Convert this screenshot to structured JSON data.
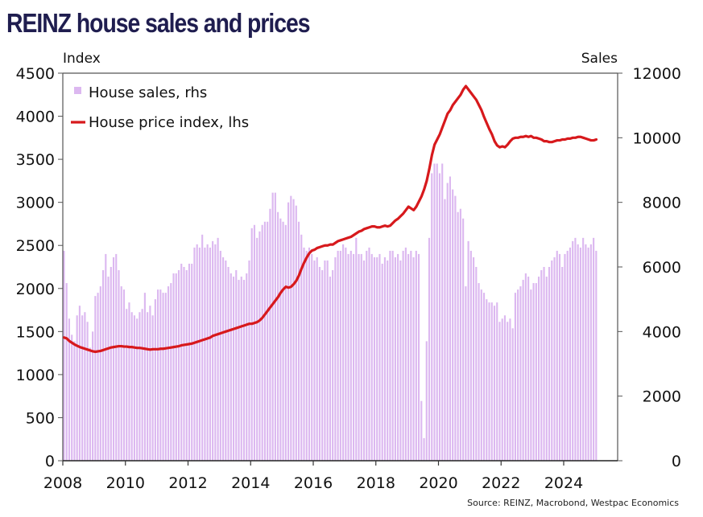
{
  "title": "REINZ house sales and prices",
  "source": "Source: REINZ, Macrobond, Westpac Economics",
  "chart_data": {
    "type": "bar+line",
    "title": "REINZ house sales and prices",
    "left_axis": {
      "label": "Index",
      "range": [
        0,
        4500
      ],
      "ticks": [
        "0",
        "500",
        "1000",
        "1500",
        "2000",
        "2500",
        "3000",
        "3500",
        "4000",
        "4500"
      ]
    },
    "right_axis": {
      "label": "Sales",
      "range": [
        0,
        12000
      ],
      "ticks": [
        "0",
        "2000",
        "4000",
        "6000",
        "8000",
        "10000",
        "12000"
      ]
    },
    "x_axis": {
      "start": "2008-01",
      "end": "2025-05",
      "ticks": [
        "2008",
        "2010",
        "2012",
        "2014",
        "2016",
        "2018",
        "2020",
        "2022",
        "2024"
      ]
    },
    "grid": false,
    "legend": {
      "position": "top-left",
      "entries": [
        {
          "label": "House sales, rhs",
          "color": "#dcb8f0",
          "type": "bar"
        },
        {
          "label": "House price index, lhs",
          "color": "#d7191c",
          "type": "line"
        }
      ]
    },
    "series": [
      {
        "name": "House sales, rhs",
        "axis": "right",
        "frequency": "monthly",
        "start": "2008-01",
        "values": [
          6500,
          5500,
          4400,
          3900,
          3700,
          4500,
          4800,
          4500,
          4600,
          4300,
          3500,
          4000,
          5100,
          5200,
          5400,
          5900,
          6400,
          5700,
          6000,
          6300,
          6400,
          5900,
          5400,
          5300,
          4700,
          4900,
          4600,
          4500,
          4400,
          4600,
          4700,
          5200,
          4600,
          4800,
          4500,
          5000,
          5300,
          5300,
          5200,
          5200,
          5400,
          5500,
          5800,
          5800,
          5900,
          6100,
          6000,
          5900,
          6100,
          6100,
          6600,
          6700,
          6600,
          7000,
          6600,
          6700,
          6600,
          6800,
          6700,
          6900,
          6500,
          6300,
          6200,
          6000,
          5800,
          5700,
          5900,
          5600,
          5700,
          5600,
          5800,
          6200,
          7200,
          7300,
          6900,
          7100,
          7300,
          7400,
          7400,
          7800,
          8300,
          8300,
          7700,
          7500,
          7400,
          7300,
          8000,
          8200,
          8100,
          7900,
          7400,
          7000,
          6600,
          6500,
          6600,
          6400,
          6200,
          6300,
          6000,
          5900,
          6200,
          6200,
          5700,
          5900,
          6300,
          6500,
          6500,
          6700,
          6600,
          6400,
          6500,
          6400,
          6900,
          6400,
          6400,
          6200,
          6500,
          6600,
          6400,
          6300,
          6300,
          6400,
          6100,
          6300,
          6200,
          6500,
          6500,
          6300,
          6400,
          6200,
          6500,
          6600,
          6400,
          6500,
          6300,
          6500,
          6400,
          1850,
          700,
          3700,
          6900,
          8900,
          9200,
          9200,
          8900,
          9200,
          8100,
          8600,
          8800,
          8400,
          8200,
          7700,
          7800,
          7500,
          5400,
          6800,
          6500,
          6300,
          6000,
          5500,
          5300,
          5200,
          5000,
          4900,
          4900,
          4800,
          4900,
          4300,
          4400,
          4500,
          4300,
          4400,
          4100,
          5200,
          5300,
          5400,
          5600,
          5800,
          5700,
          5300,
          5500,
          5500,
          5700,
          5900,
          6000,
          5700,
          6000,
          6200,
          6300,
          6500,
          6400,
          6000,
          6400,
          6500,
          6600,
          6800,
          6900,
          6700,
          6600,
          6900,
          6700,
          6600,
          6700,
          6900,
          6500
        ]
      },
      {
        "name": "House price index, lhs",
        "axis": "left",
        "frequency": "monthly",
        "start": "2008-01",
        "values": [
          1640,
          1630,
          1600,
          1580,
          1560,
          1545,
          1530,
          1520,
          1510,
          1500,
          1490,
          1480,
          1475,
          1480,
          1485,
          1495,
          1505,
          1515,
          1525,
          1530,
          1535,
          1540,
          1540,
          1535,
          1535,
          1530,
          1530,
          1525,
          1520,
          1520,
          1515,
          1510,
          1505,
          1500,
          1505,
          1505,
          1505,
          1510,
          1510,
          1515,
          1520,
          1525,
          1530,
          1535,
          1540,
          1550,
          1555,
          1560,
          1565,
          1570,
          1580,
          1590,
          1600,
          1610,
          1620,
          1630,
          1640,
          1660,
          1670,
          1680,
          1690,
          1700,
          1710,
          1720,
          1730,
          1740,
          1750,
          1760,
          1770,
          1780,
          1790,
          1800,
          1800,
          1810,
          1820,
          1840,
          1870,
          1910,
          1950,
          1990,
          2030,
          2070,
          2110,
          2160,
          2200,
          2230,
          2220,
          2230,
          2260,
          2300,
          2360,
          2440,
          2510,
          2570,
          2620,
          2650,
          2660,
          2680,
          2690,
          2700,
          2710,
          2710,
          2720,
          2720,
          2740,
          2760,
          2770,
          2780,
          2790,
          2800,
          2810,
          2830,
          2850,
          2870,
          2880,
          2900,
          2910,
          2920,
          2930,
          2930,
          2920,
          2920,
          2930,
          2940,
          2930,
          2940,
          2970,
          3000,
          3020,
          3050,
          3080,
          3120,
          3160,
          3140,
          3120,
          3160,
          3220,
          3280,
          3360,
          3460,
          3600,
          3760,
          3880,
          3940,
          4000,
          4080,
          4160,
          4240,
          4280,
          4340,
          4380,
          4420,
          4460,
          4520,
          4560,
          4520,
          4480,
          4440,
          4400,
          4340,
          4280,
          4200,
          4130,
          4060,
          4000,
          3920,
          3870,
          3850,
          3860,
          3850,
          3880,
          3920,
          3950,
          3960,
          3960,
          3970,
          3970,
          3980,
          3970,
          3980,
          3960,
          3960,
          3950,
          3940,
          3920,
          3920,
          3910,
          3910,
          3920,
          3930,
          3930,
          3940,
          3940,
          3950,
          3950,
          3960,
          3960,
          3970,
          3970,
          3960,
          3950,
          3940,
          3930,
          3930,
          3940
        ]
      }
    ]
  },
  "plot_notes": "HPI series is expressed with an index offset; see axis mapping"
}
